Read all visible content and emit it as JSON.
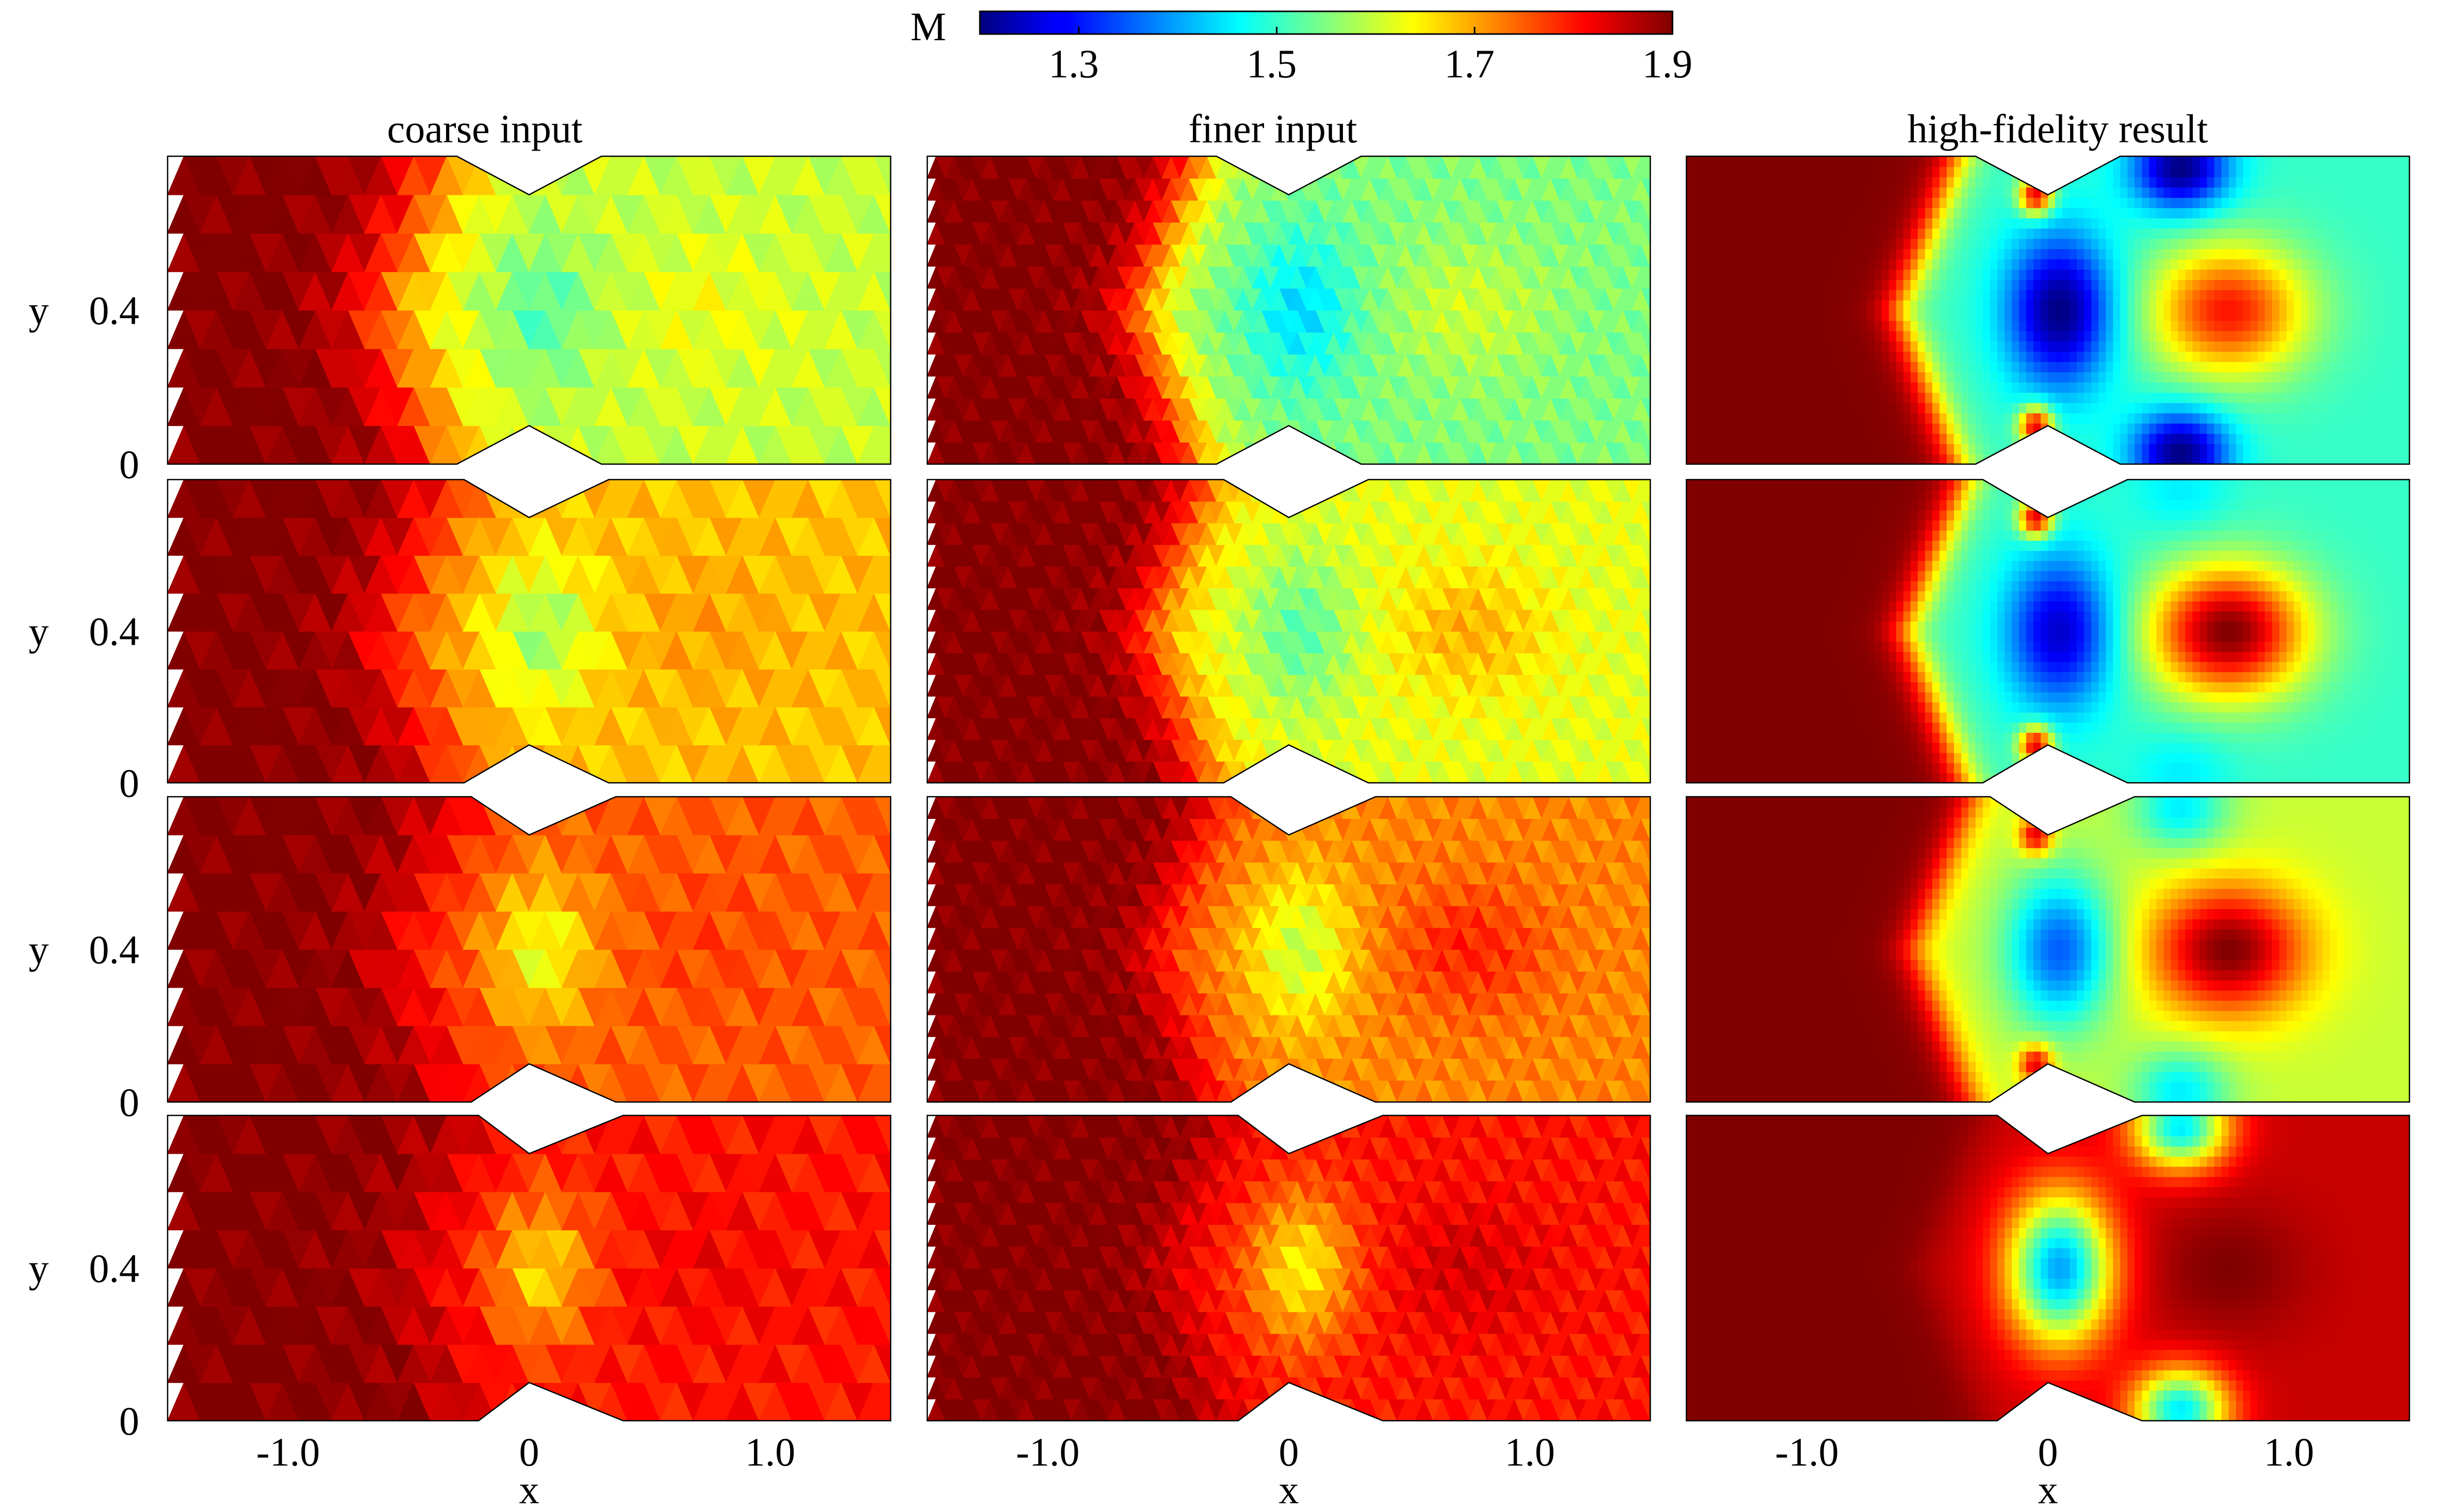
{
  "colorbar": {
    "label": "M",
    "min": 1.2,
    "max": 1.9,
    "ticks": [
      "1.3",
      "1.5",
      "1.7",
      "1.9"
    ],
    "tick_values": [
      1.3,
      1.5,
      1.7,
      1.9
    ],
    "colormap": "jet"
  },
  "columns": [
    {
      "title": "coarse input",
      "mesh": "coarse"
    },
    {
      "title": "finer input",
      "mesh": "finer"
    },
    {
      "title": "high-fidelity result",
      "mesh": "smooth"
    }
  ],
  "axes": {
    "xlabel": "x",
    "ylabel": "y",
    "xlim": [
      -1.5,
      1.5
    ],
    "ylim": [
      0,
      0.8
    ],
    "xticks": [
      "-1.0",
      "0",
      "1.0"
    ],
    "xtick_values": [
      -1.0,
      0,
      1.0
    ],
    "yticks": [
      "0.4",
      "0"
    ],
    "ytick_values": [
      0.4,
      0
    ]
  },
  "chart_data": {
    "type": "heatmap",
    "field": "Mach number M",
    "layout": "4 rows x 3 columns",
    "inlet_mach": 1.9,
    "rows": [
      {
        "outlet_mach": [
          1.6,
          1.55,
          1.5
        ],
        "core_mach": [
          1.45,
          1.35,
          1.2
        ],
        "rear_mach": [
          1.65,
          1.65,
          1.8
        ]
      },
      {
        "outlet_mach": [
          1.68,
          1.62,
          1.5
        ],
        "core_mach": [
          1.48,
          1.45,
          1.25
        ],
        "rear_mach": [
          1.72,
          1.75,
          1.9
        ]
      },
      {
        "outlet_mach": [
          1.75,
          1.72,
          1.6
        ],
        "core_mach": [
          1.52,
          1.5,
          1.35
        ],
        "rear_mach": [
          1.78,
          1.85,
          1.9
        ]
      },
      {
        "outlet_mach": [
          1.8,
          1.8,
          1.85
        ],
        "core_mach": [
          1.55,
          1.52,
          1.4
        ],
        "rear_mach": [
          1.83,
          1.88,
          1.9
        ]
      }
    ]
  }
}
